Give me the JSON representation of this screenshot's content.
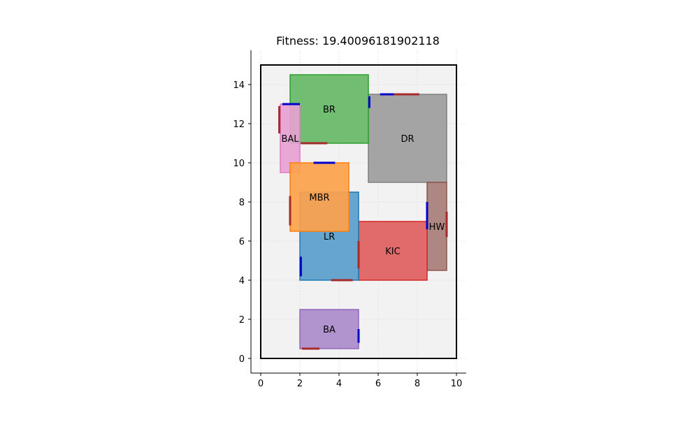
{
  "title": "Fitness: 19.40096181902118",
  "chart_data": {
    "type": "floor-plan",
    "xlim": [
      -0.5,
      10.5
    ],
    "ylim": [
      -0.75,
      15.75
    ],
    "x_ticks": [
      0,
      2,
      4,
      6,
      8,
      10
    ],
    "y_ticks": [
      0,
      2,
      4,
      6,
      8,
      10,
      12,
      14
    ],
    "grid": true,
    "boundary": {
      "x0": 0,
      "y0": 0,
      "x1": 10,
      "y1": 15
    },
    "rooms": [
      {
        "name": "DR",
        "x0": 5.5,
        "y0": 9.0,
        "x1": 9.5,
        "y1": 13.5,
        "fill": "#9d9d9d",
        "stroke": "#7f7f7f"
      },
      {
        "name": "BR",
        "x0": 1.5,
        "y0": 11.0,
        "x1": 5.5,
        "y1": 14.5,
        "fill": "#66b966",
        "stroke": "#2ca02c"
      },
      {
        "name": "BAL",
        "x0": 1.0,
        "y0": 9.5,
        "x1": 2.0,
        "y1": 13.0,
        "fill": "#e7a1d3",
        "stroke": "#e377c2"
      },
      {
        "name": "HW",
        "x0": 8.5,
        "y0": 4.5,
        "x1": 9.5,
        "y1": 9.0,
        "fill": "#a87e78",
        "stroke": "#8c564b"
      },
      {
        "name": "KIC",
        "x0": 5.0,
        "y0": 4.0,
        "x1": 8.5,
        "y1": 7.0,
        "fill": "#df5f5f",
        "stroke": "#d62728"
      },
      {
        "name": "LR",
        "x0": 2.0,
        "y0": 4.0,
        "x1": 5.0,
        "y1": 8.5,
        "fill": "#5a9ecb",
        "stroke": "#1f77b4"
      },
      {
        "name": "MBR",
        "x0": 1.5,
        "y0": 6.5,
        "x1": 4.5,
        "y1": 10.0,
        "fill": "#fda24c",
        "stroke": "#ff7f0e"
      },
      {
        "name": "BA",
        "x0": 2.0,
        "y0": 0.5,
        "x1": 5.0,
        "y1": 2.5,
        "fill": "#ab8ccb",
        "stroke": "#9467bd"
      }
    ],
    "doors": [
      {
        "x0": 1.1,
        "y0": 13.0,
        "x1": 2.0,
        "y1": 13.0,
        "color": "#0000cc"
      },
      {
        "x0": 0.95,
        "y0": 11.5,
        "x1": 0.95,
        "y1": 12.9,
        "color": "#a52a2a"
      },
      {
        "x0": 2.05,
        "y0": 11.0,
        "x1": 3.4,
        "y1": 11.0,
        "color": "#a52a2a"
      },
      {
        "x0": 5.55,
        "y0": 12.8,
        "x1": 5.55,
        "y1": 13.4,
        "color": "#0000cc"
      },
      {
        "x0": 6.1,
        "y0": 13.5,
        "x1": 6.8,
        "y1": 13.5,
        "color": "#0000cc"
      },
      {
        "x0": 6.8,
        "y0": 13.5,
        "x1": 8.1,
        "y1": 13.5,
        "color": "#a52a2a"
      },
      {
        "x0": 2.7,
        "y0": 10.0,
        "x1": 3.8,
        "y1": 10.0,
        "color": "#0000cc"
      },
      {
        "x0": 1.5,
        "y0": 6.8,
        "x1": 1.5,
        "y1": 8.3,
        "color": "#a52a2a"
      },
      {
        "x0": 8.5,
        "y0": 6.6,
        "x1": 8.5,
        "y1": 8.0,
        "color": "#0000cc"
      },
      {
        "x0": 9.5,
        "y0": 6.2,
        "x1": 9.5,
        "y1": 7.5,
        "color": "#a52a2a"
      },
      {
        "x0": 5.0,
        "y0": 4.6,
        "x1": 5.0,
        "y1": 6.0,
        "color": "#a52a2a"
      },
      {
        "x0": 2.05,
        "y0": 4.2,
        "x1": 2.05,
        "y1": 5.2,
        "color": "#0000cc"
      },
      {
        "x0": 3.6,
        "y0": 4.0,
        "x1": 4.7,
        "y1": 4.0,
        "color": "#a52a2a"
      },
      {
        "x0": 5.0,
        "y0": 0.8,
        "x1": 5.0,
        "y1": 1.5,
        "color": "#0000cc"
      },
      {
        "x0": 2.1,
        "y0": 0.5,
        "x1": 3.0,
        "y1": 0.5,
        "color": "#a52a2a"
      }
    ]
  }
}
